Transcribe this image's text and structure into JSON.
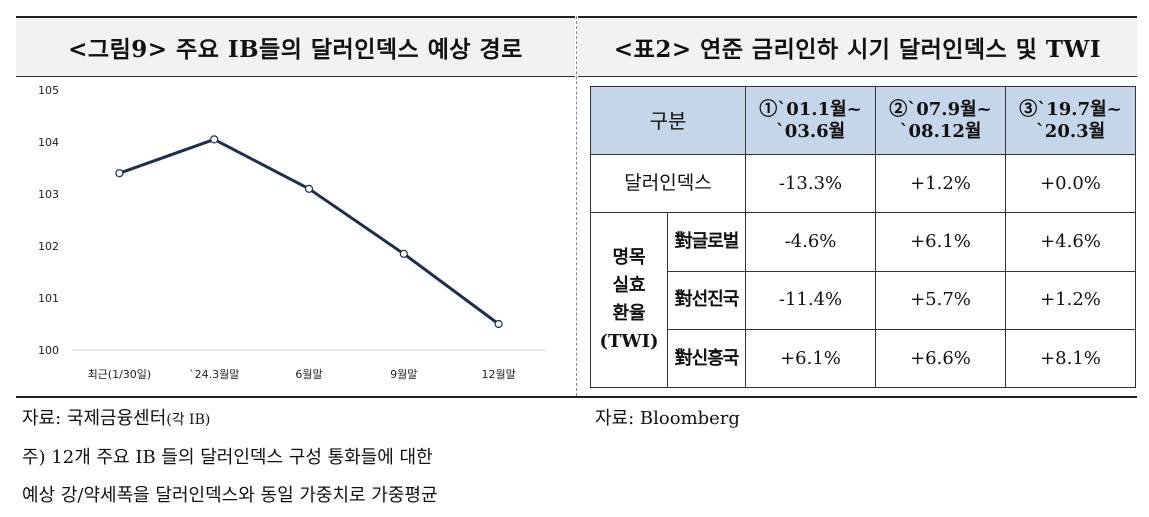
{
  "left_title": "<그림9> 주요 IB들의 달러인덱스 예상 경로",
  "right_title": "<표2> 연준 금리인하 시기 달러인덱스 및 TWI",
  "chart_data": {
    "type": "line",
    "title": "",
    "xlabel": "",
    "ylabel": "",
    "categories": [
      "최근(1/30일)",
      "`24.3월말",
      "6월말",
      "9월말",
      "12월말"
    ],
    "series": [
      {
        "values": [
          103.4,
          104.05,
          103.1,
          101.85,
          100.5
        ]
      }
    ],
    "ylim": [
      100,
      105
    ],
    "yticks": [
      "100",
      "101",
      "102",
      "103",
      "104",
      "105"
    ],
    "grid": false,
    "line_color": "#1f2d4f",
    "marker_fill": "#ffffff"
  },
  "table": {
    "header_gubun": "구분",
    "periods": [
      {
        "line1": "①`01.1월~",
        "line2": "`03.6월"
      },
      {
        "line1": "②`07.9월~",
        "line2": "`08.12월"
      },
      {
        "line1": "③`19.7월~",
        "line2": "`20.3월"
      }
    ],
    "dollar_index": {
      "label": "달러인덱스",
      "values": [
        "-13.3%",
        "+1.2%",
        "+0.0%"
      ]
    },
    "group": {
      "line1": "명목",
      "line2": "실효",
      "line3": "환율",
      "line4": "(TWI)"
    },
    "rows": [
      {
        "label": "對글로벌",
        "values": [
          "-4.6%",
          "+6.1%",
          "+4.6%"
        ]
      },
      {
        "label": "對선진국",
        "values": [
          "-11.4%",
          "+5.7%",
          "+1.2%"
        ]
      },
      {
        "label": "對신흥국",
        "values": [
          "+6.1%",
          "+6.6%",
          "+8.1%"
        ]
      }
    ],
    "header_color": "#c5d5ea"
  },
  "notes": {
    "source_left": "자료: 국제금융센터",
    "source_left_small": "(각 IB)",
    "footnote_1": "주) 12개 주요 IB 들의 달러인덱스 구성 통화들에 대한",
    "footnote_2": "예상 강/약세폭을 달러인덱스와 동일 가중치로 가중평균",
    "source_right": "자료: Bloomberg"
  }
}
